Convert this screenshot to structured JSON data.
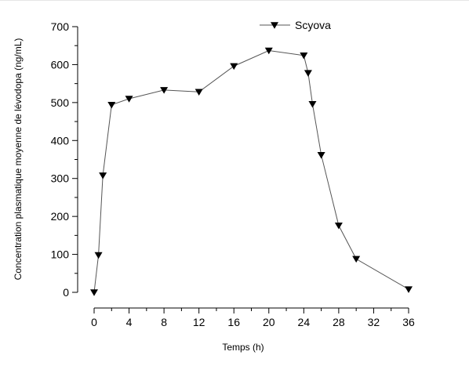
{
  "chart_data": {
    "type": "line",
    "title": "",
    "xlabel": "Temps (h)",
    "ylabel": "Concentration plasmatique moyenne de lévodopa (ng/mL)",
    "xlim": [
      0,
      36
    ],
    "ylim": [
      0,
      700
    ],
    "xticks": [
      0,
      4,
      8,
      12,
      16,
      20,
      24,
      28,
      32,
      36
    ],
    "yticks": [
      0,
      100,
      200,
      300,
      400,
      500,
      600,
      700
    ],
    "grid": false,
    "legend_position": "top-center",
    "series": [
      {
        "name": "Scyova",
        "marker": "triangle-down",
        "color": "#000000",
        "x": [
          0,
          0.5,
          1,
          2,
          4,
          8,
          12,
          16,
          20,
          24,
          24.5,
          25,
          26,
          28,
          30,
          36
        ],
        "y": [
          0,
          98,
          308,
          494,
          510,
          533,
          528,
          596,
          637,
          624,
          578,
          496,
          362,
          176,
          88,
          8
        ]
      }
    ]
  }
}
